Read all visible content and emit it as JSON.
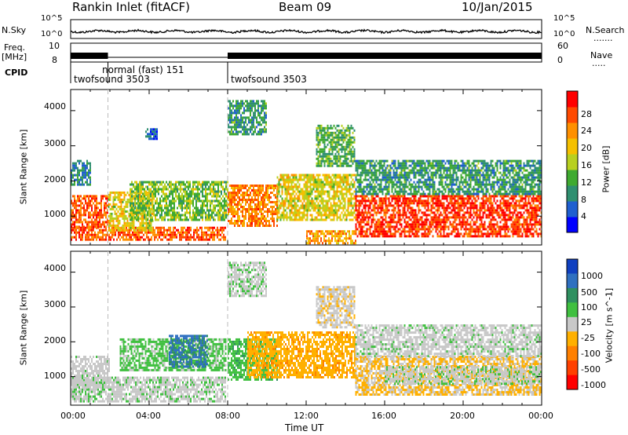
{
  "header": {
    "title": "Rankin Inlet (fitACF)",
    "beam": "Beam 09",
    "date": "10/Jan/2015"
  },
  "top_panels": {
    "nsky_label": "N.Sky",
    "nsky_ticks": [
      "10^5",
      "10^0"
    ],
    "nsearch_label": "N.Search",
    "nsearch_ticks": [
      "10^5",
      "10^0"
    ],
    "freq_label": "Freq.",
    "freq_unit": "[MHz]",
    "freq_ticks": [
      "10",
      "8"
    ],
    "nave_label": "Nave",
    "nave_ticks": [
      "60",
      "0"
    ],
    "cpid_label": "CPID",
    "cpid_segments": [
      {
        "name": "twofsound 3503",
        "start_hr": 0.0,
        "end_hr": 1.9
      },
      {
        "name": "normal (fast) 151",
        "start_hr": 1.9,
        "end_hr": 8.0
      },
      {
        "name": "twofsound 3503",
        "start_hr": 8.0,
        "end_hr": 24.0
      }
    ]
  },
  "x_axis": {
    "label": "Time UT",
    "ticks": [
      "00:00",
      "04:00",
      "08:00",
      "12:00",
      "16:00",
      "20:00",
      "00:00"
    ]
  },
  "chart_data": [
    {
      "type": "heatmap",
      "title": "Power",
      "xlabel": "Time UT",
      "ylabel": "Slant Range [km]",
      "x_range_hours": [
        0,
        24
      ],
      "ylim": [
        180,
        4600
      ],
      "yticks": [
        1000,
        2000,
        3000,
        4000
      ],
      "colorbar": {
        "label": "Power [dB]",
        "ticks": [
          "4",
          "8",
          "12",
          "16",
          "20",
          "24",
          "28"
        ],
        "colors": [
          "#0000ff",
          "#1f5fd0",
          "#2f8f70",
          "#3faa30",
          "#b8d020",
          "#f5c000",
          "#ff9000",
          "#ff4a00",
          "#ff0000"
        ],
        "range": [
          0,
          32
        ]
      },
      "regions": [
        {
          "t0": 0.0,
          "t1": 7.9,
          "r0": 300,
          "r1": 700,
          "level": 26
        },
        {
          "t0": 0.0,
          "t1": 1.9,
          "r0": 700,
          "r1": 1600,
          "level": 26
        },
        {
          "t0": 1.9,
          "t1": 4.2,
          "r0": 600,
          "r1": 1700,
          "level": 18
        },
        {
          "t0": 3.0,
          "t1": 8.0,
          "r0": 900,
          "r1": 2000,
          "level": 14
        },
        {
          "t0": 8.0,
          "t1": 10.5,
          "r0": 700,
          "r1": 1900,
          "level": 24
        },
        {
          "t0": 10.5,
          "t1": 14.5,
          "r0": 900,
          "r1": 2200,
          "level": 18
        },
        {
          "t0": 12.0,
          "t1": 14.5,
          "r0": 250,
          "r1": 600,
          "level": 22
        },
        {
          "t0": 14.5,
          "t1": 24.0,
          "r0": 400,
          "r1": 1600,
          "level": 28
        },
        {
          "t0": 14.5,
          "t1": 24.0,
          "r0": 1600,
          "r1": 2600,
          "level": 10
        },
        {
          "t0": 0.0,
          "t1": 1.0,
          "r0": 1900,
          "r1": 2600,
          "level": 8
        },
        {
          "t0": 8.0,
          "t1": 10.0,
          "r0": 3300,
          "r1": 4300,
          "level": 10
        },
        {
          "t0": 3.8,
          "t1": 4.4,
          "r0": 3200,
          "r1": 3500,
          "level": 6
        },
        {
          "t0": 12.5,
          "t1": 14.5,
          "r0": 2400,
          "r1": 3600,
          "level": 12
        }
      ]
    },
    {
      "type": "heatmap",
      "title": "Velocity",
      "xlabel": "Time UT",
      "ylabel": "Slant Range [km]",
      "x_range_hours": [
        0,
        24
      ],
      "ylim": [
        180,
        4600
      ],
      "yticks": [
        1000,
        2000,
        3000,
        4000
      ],
      "colorbar": {
        "label": "Velocity [m s^-1]",
        "ticks": [
          "1000",
          "500",
          "100",
          "25",
          "-25",
          "-100",
          "-500",
          "-1000"
        ],
        "colors": [
          "#1040c0",
          "#2f70c0",
          "#2f9060",
          "#40c040",
          "#c8c8c8",
          "#ffb000",
          "#ff8000",
          "#ff4000",
          "#ff0000"
        ],
        "range": [
          -1200,
          1200
        ]
      },
      "regions": [
        {
          "t0": 0.0,
          "t1": 7.9,
          "r0": 300,
          "r1": 1000,
          "level": 60
        },
        {
          "t0": 0.0,
          "t1": 2.0,
          "r0": 700,
          "r1": 1600,
          "level": 10
        },
        {
          "t0": 2.5,
          "t1": 7.9,
          "r0": 1200,
          "r1": 2100,
          "level": 200
        },
        {
          "t0": 5.0,
          "t1": 7.0,
          "r0": 1300,
          "r1": 2200,
          "level": 700
        },
        {
          "t0": 8.0,
          "t1": 10.5,
          "r0": 900,
          "r1": 2100,
          "level": 300
        },
        {
          "t0": 9.0,
          "t1": 14.5,
          "r0": 1000,
          "r1": 2300,
          "level": -300
        },
        {
          "t0": 14.5,
          "t1": 24.0,
          "r0": 500,
          "r1": 1600,
          "level": -150
        },
        {
          "t0": 16.0,
          "t1": 24.0,
          "r0": 800,
          "r1": 1300,
          "level": 60
        },
        {
          "t0": 14.5,
          "t1": 24.0,
          "r0": 1600,
          "r1": 2500,
          "level": 40
        },
        {
          "t0": 8.0,
          "t1": 10.0,
          "r0": 3300,
          "r1": 4300,
          "level": 80
        },
        {
          "t0": 12.5,
          "t1": 14.5,
          "r0": 2400,
          "r1": 3600,
          "level": -60
        }
      ]
    }
  ]
}
